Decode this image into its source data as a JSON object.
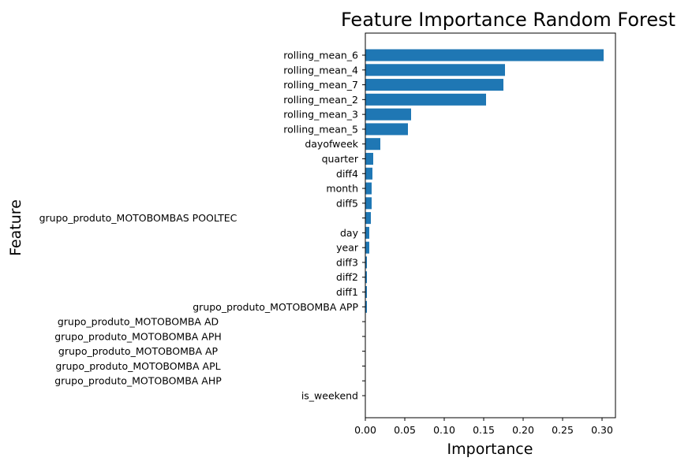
{
  "chart_data": {
    "type": "bar",
    "orientation": "horizontal",
    "title": "Feature Importance Random Forest",
    "xlabel": "Importance",
    "ylabel": "Feature",
    "xlim": [
      0.0,
      0.317
    ],
    "xticks": [
      0.0,
      0.05,
      0.1,
      0.15,
      0.2,
      0.25,
      0.3
    ],
    "xtick_labels": [
      "0.00",
      "0.05",
      "0.10",
      "0.15",
      "0.20",
      "0.25",
      "0.30"
    ],
    "grid": false,
    "bar_color": "#1f77b4",
    "categories": [
      "rolling_mean_6",
      "rolling_mean_4",
      "rolling_mean_7",
      "rolling_mean_2",
      "rolling_mean_3",
      "rolling_mean_5",
      "dayofweek",
      "quarter",
      "diff4",
      "month",
      "diff5",
      "grupo_produto_MOTOBOMBAS POOLTEC",
      "day",
      "year",
      "diff3",
      "diff2",
      "diff1",
      "grupo_produto_MOTOBOMBA APP",
      "grupo_produto_MOTOBOMBA AD",
      "grupo_produto_MOTOBOMBA APH",
      "grupo_produto_MOTOBOMBA AP",
      "grupo_produto_MOTOBOMBA APL",
      "grupo_produto_MOTOBOMBA AHP",
      "is_weekend"
    ],
    "values": [
      0.302,
      0.177,
      0.175,
      0.153,
      0.058,
      0.054,
      0.019,
      0.01,
      0.009,
      0.008,
      0.008,
      0.007,
      0.005,
      0.005,
      0.002,
      0.002,
      0.002,
      0.002,
      0.0,
      0.0,
      0.0,
      0.0,
      0.0,
      0.0
    ]
  }
}
